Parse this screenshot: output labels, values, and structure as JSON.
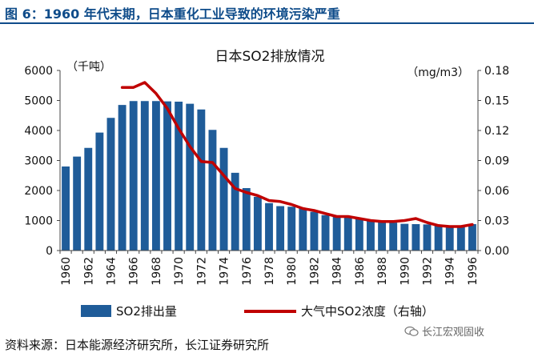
{
  "figure": {
    "label": "图 6：1960 年代末期，日本重化工业导致的环境污染严重",
    "source": "资料来源：日本能源经济研究所，长江证券研究所",
    "watermark": "长江宏观固收"
  },
  "chart_data": {
    "type": "bar+line",
    "title": "日本SO2排放情况",
    "left_axis": {
      "unit_label": "（千吨）",
      "ylim": [
        0,
        6000
      ],
      "ticks": [
        "0",
        "1000",
        "2000",
        "3000",
        "4000",
        "5000",
        "6000"
      ]
    },
    "right_axis": {
      "unit_label": "（mg/m3）",
      "ylim": [
        0,
        0.18
      ],
      "ticks": [
        "0.00",
        "0.03",
        "0.06",
        "0.09",
        "0.12",
        "0.15",
        "0.18"
      ]
    },
    "x_labels": [
      "1960",
      "1962",
      "1964",
      "1966",
      "1968",
      "1970",
      "1972",
      "1974",
      "1976",
      "1978",
      "1980",
      "1982",
      "1984",
      "1986",
      "1988",
      "1990",
      "1992",
      "1994",
      "1996"
    ],
    "years": [
      1960,
      1961,
      1962,
      1963,
      1964,
      1965,
      1966,
      1967,
      1968,
      1969,
      1970,
      1971,
      1972,
      1973,
      1974,
      1975,
      1976,
      1977,
      1978,
      1979,
      1980,
      1981,
      1982,
      1983,
      1984,
      1985,
      1986,
      1987,
      1988,
      1989,
      1990,
      1991,
      1992,
      1993,
      1994,
      1995,
      1996
    ],
    "series": [
      {
        "name": "SO2排出量",
        "type": "bar",
        "axis": "left",
        "color": "#1f5c99",
        "values": [
          2800,
          3130,
          3420,
          3930,
          4420,
          4850,
          4980,
          4980,
          4980,
          4970,
          4960,
          4890,
          4700,
          4020,
          3420,
          2590,
          2080,
          1790,
          1580,
          1480,
          1460,
          1400,
          1290,
          1180,
          1140,
          1100,
          1050,
          1000,
          960,
          930,
          890,
          880,
          870,
          860,
          840,
          830,
          880
        ]
      },
      {
        "name": "大气中SO2浓度（右轴）",
        "type": "line",
        "axis": "right",
        "color": "#c00000",
        "x": [
          1965,
          1966,
          1967,
          1968,
          1969,
          1970,
          1971,
          1972,
          1973,
          1974,
          1975,
          1976,
          1977,
          1978,
          1979,
          1980,
          1981,
          1982,
          1983,
          1984,
          1985,
          1986,
          1987,
          1988,
          1989,
          1990,
          1991,
          1992,
          1993,
          1994,
          1995,
          1996
        ],
        "values": [
          0.163,
          0.163,
          0.168,
          0.157,
          0.142,
          0.122,
          0.104,
          0.089,
          0.088,
          0.075,
          0.062,
          0.058,
          0.055,
          0.05,
          0.049,
          0.046,
          0.042,
          0.04,
          0.037,
          0.034,
          0.034,
          0.032,
          0.03,
          0.029,
          0.029,
          0.03,
          0.032,
          0.028,
          0.025,
          0.024,
          0.024,
          0.026
        ]
      }
    ]
  }
}
